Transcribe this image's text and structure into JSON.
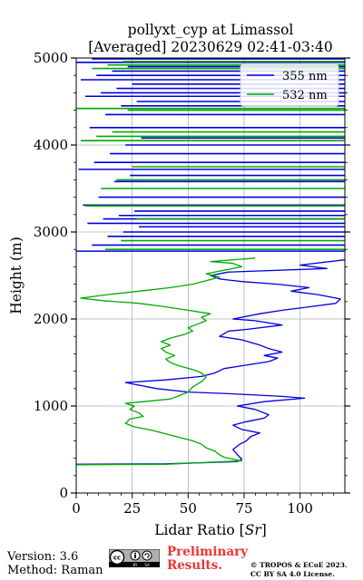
{
  "chart_data": {
    "type": "line",
    "title_line1": "pollyxt_cyp at Limassol",
    "title_line2": "[Averaged] 20230629 02:41-03:40",
    "xlabel_prefix": "Lidar Ratio [",
    "xlabel_unit": "Sr",
    "xlabel_suffix": "]",
    "ylabel": "Height (m)",
    "xlim": [
      0,
      120
    ],
    "ylim": [
      0,
      5000
    ],
    "x_ticks": [
      "0",
      "25",
      "50",
      "75",
      "100"
    ],
    "y_ticks": [
      "0",
      "1000",
      "2000",
      "3000",
      "4000",
      "5000"
    ],
    "grid": true,
    "legend_position": "top-right",
    "series": [
      {
        "name": "355 nm",
        "color": "#0000dd",
        "points": [
          [
            0,
            330
          ],
          [
            40,
            335
          ],
          [
            72,
            360
          ],
          [
            74,
            390
          ],
          [
            72,
            440
          ],
          [
            70,
            500
          ],
          [
            73,
            560
          ],
          [
            76,
            600
          ],
          [
            78,
            650
          ],
          [
            82,
            690
          ],
          [
            74,
            730
          ],
          [
            70,
            780
          ],
          [
            76,
            820
          ],
          [
            84,
            860
          ],
          [
            86,
            900
          ],
          [
            80,
            960
          ],
          [
            72,
            1000
          ],
          [
            84,
            1050
          ],
          [
            102,
            1090
          ],
          [
            92,
            1110
          ],
          [
            70,
            1140
          ],
          [
            50,
            1160
          ],
          [
            36,
            1200
          ],
          [
            22,
            1270
          ],
          [
            40,
            1300
          ],
          [
            56,
            1340
          ],
          [
            62,
            1380
          ],
          [
            66,
            1430
          ],
          [
            76,
            1470
          ],
          [
            86,
            1510
          ],
          [
            90,
            1550
          ],
          [
            84,
            1580
          ],
          [
            92,
            1620
          ],
          [
            86,
            1660
          ],
          [
            82,
            1700
          ],
          [
            74,
            1760
          ],
          [
            64,
            1800
          ],
          [
            68,
            1860
          ],
          [
            76,
            1880
          ],
          [
            92,
            1930
          ],
          [
            80,
            1980
          ],
          [
            70,
            2000
          ],
          [
            82,
            2060
          ],
          [
            92,
            2100
          ],
          [
            104,
            2140
          ],
          [
            116,
            2180
          ],
          [
            118,
            2230
          ],
          [
            108,
            2280
          ],
          [
            96,
            2320
          ],
          [
            104,
            2360
          ],
          [
            90,
            2400
          ],
          [
            74,
            2430
          ],
          [
            64,
            2460
          ],
          [
            60,
            2500
          ],
          [
            68,
            2540
          ],
          [
            112,
            2580
          ],
          [
            100,
            2620
          ],
          [
            120,
            2680
          ]
        ],
        "thin_layers_m": [
          2780,
          2850,
          2950,
          3000,
          3060,
          3100,
          3150,
          3190,
          3240,
          3310,
          3400,
          3580,
          3650,
          3720,
          3800,
          3900,
          4000,
          4080,
          4200,
          4350,
          4450,
          4500,
          4560,
          4600,
          4650,
          4700,
          4750,
          4800,
          4850,
          4900,
          4950,
          4990
        ]
      },
      {
        "name": "532 nm",
        "color": "#00aa00",
        "points": [
          [
            0,
            325
          ],
          [
            40,
            330
          ],
          [
            74,
            370
          ],
          [
            70,
            390
          ],
          [
            66,
            410
          ],
          [
            64,
            440
          ],
          [
            62,
            480
          ],
          [
            58,
            520
          ],
          [
            56,
            560
          ],
          [
            52,
            600
          ],
          [
            46,
            640
          ],
          [
            40,
            680
          ],
          [
            34,
            720
          ],
          [
            26,
            760
          ],
          [
            22,
            800
          ],
          [
            24,
            850
          ],
          [
            30,
            880
          ],
          [
            28,
            920
          ],
          [
            24,
            960
          ],
          [
            26,
            1000
          ],
          [
            22,
            1030
          ],
          [
            30,
            1050
          ],
          [
            42,
            1080
          ],
          [
            46,
            1120
          ],
          [
            50,
            1160
          ],
          [
            52,
            1220
          ],
          [
            56,
            1280
          ],
          [
            58,
            1330
          ],
          [
            56,
            1380
          ],
          [
            52,
            1420
          ],
          [
            46,
            1460
          ],
          [
            42,
            1500
          ],
          [
            40,
            1540
          ],
          [
            44,
            1580
          ],
          [
            40,
            1620
          ],
          [
            38,
            1660
          ],
          [
            42,
            1700
          ],
          [
            38,
            1740
          ],
          [
            42,
            1780
          ],
          [
            48,
            1820
          ],
          [
            52,
            1860
          ],
          [
            50,
            1900
          ],
          [
            54,
            1940
          ],
          [
            58,
            1980
          ],
          [
            56,
            2020
          ],
          [
            60,
            2060
          ],
          [
            50,
            2100
          ],
          [
            40,
            2140
          ],
          [
            28,
            2180
          ],
          [
            12,
            2210
          ],
          [
            2,
            2240
          ],
          [
            14,
            2280
          ],
          [
            28,
            2320
          ],
          [
            42,
            2360
          ],
          [
            52,
            2400
          ],
          [
            58,
            2440
          ],
          [
            64,
            2480
          ],
          [
            58,
            2520
          ],
          [
            66,
            2560
          ],
          [
            74,
            2600
          ],
          [
            70,
            2640
          ],
          [
            60,
            2660
          ],
          [
            80,
            2700
          ]
        ],
        "thin_layers_m": [
          2800,
          2900,
          3150,
          3300,
          3500,
          3600,
          3750,
          4050,
          4100,
          4150,
          4400,
          4420,
          4880,
          4920,
          4960
        ]
      }
    ]
  },
  "footer": {
    "version": "Version: 3.6",
    "method": "Method: Raman",
    "preliminary_line1": "Preliminary",
    "preliminary_line2": "Results.",
    "copyright_line1": "© TROPOS & ECoE 2023.",
    "copyright_line2": "CC BY SA 4.0 License."
  },
  "cc_badge_icon": "cc-by-sa-icon"
}
